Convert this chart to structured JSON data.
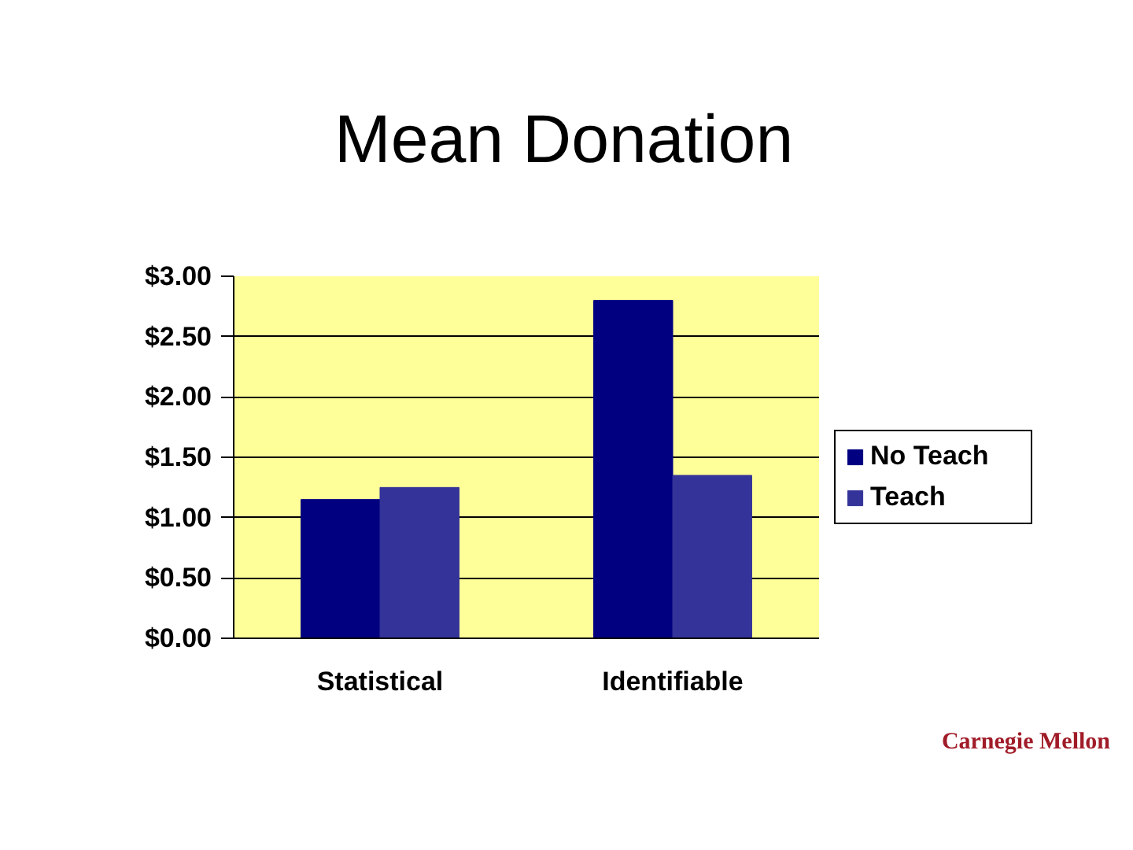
{
  "chart_data": {
    "type": "bar",
    "title": "Mean Donation",
    "categories": [
      "Statistical",
      "Identifiable"
    ],
    "series": [
      {
        "name": "No Teach",
        "color": "#000080",
        "values": [
          1.15,
          2.8
        ]
      },
      {
        "name": "Teach",
        "color": "#333399",
        "values": [
          1.25,
          1.35
        ]
      }
    ],
    "ylim": [
      0,
      3
    ],
    "yticks": [
      {
        "value": 0,
        "label": "$0.00"
      },
      {
        "value": 0.5,
        "label": "$0.50"
      },
      {
        "value": 1,
        "label": "$1.00"
      },
      {
        "value": 1.5,
        "label": "$1.50"
      },
      {
        "value": 2,
        "label": "$2.00"
      },
      {
        "value": 2.5,
        "label": "$2.50"
      },
      {
        "value": 3,
        "label": "$3.00"
      }
    ],
    "grid": "y",
    "legend": "right",
    "annotations": [
      "Carnegie Mellon"
    ]
  }
}
